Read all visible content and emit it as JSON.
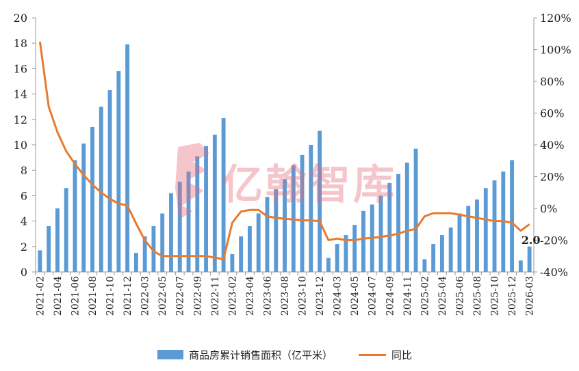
{
  "chart_data": {
    "type": "bar",
    "categories": [
      "2021-02",
      "2021-03",
      "2021-04",
      "2021-05",
      "2021-06",
      "2021-07",
      "2021-08",
      "2021-09",
      "2021-10",
      "2021-11",
      "2021-12",
      "2022-02",
      "2022-03",
      "2022-04",
      "2022-05",
      "2022-06",
      "2022-07",
      "2022-08",
      "2022-09",
      "2022-10",
      "2022-11",
      "2022-12",
      "2023-02",
      "2023-03",
      "2023-04",
      "2023-05",
      "2023-06",
      "2023-07",
      "2023-08",
      "2023-09",
      "2023-10",
      "2023-11",
      "2023-12",
      "2024-02",
      "2024-03",
      "2024-04",
      "2024-05",
      "2024-06",
      "2024-07",
      "2024-08",
      "2024-09",
      "2024-10",
      "2024-11",
      "2024-12",
      "2025-02",
      "2025-03",
      "2025-04",
      "2025-05",
      "2025-06",
      "2025-07",
      "2025-08",
      "2025-09",
      "2025-10",
      "2025-11",
      "2025-12",
      "2026-02",
      "2026-03"
    ],
    "tick_labels": [
      "2021-02",
      "2021-04",
      "2021-06",
      "2021-08",
      "2021-10",
      "2021-12",
      "2022-03",
      "2022-05",
      "2022-07",
      "2022-09",
      "2022-11",
      "2023-02",
      "2023-04",
      "2023-06",
      "2023-08",
      "2023-10",
      "2023-12",
      "2024-03",
      "2024-05",
      "2024-07",
      "2024-09",
      "2024-11",
      "2025-02",
      "2025-04",
      "2025-06",
      "2025-08",
      "2025-10",
      "2025-12",
      "2026-03"
    ],
    "series": [
      {
        "name": "商品房累计销售面积（亿平米）",
        "type": "bar",
        "axis": "left",
        "color": "#5b9bd5",
        "values": [
          1.7,
          3.6,
          5.0,
          6.6,
          8.8,
          10.1,
          11.4,
          13.0,
          14.3,
          15.8,
          17.9,
          1.5,
          2.8,
          3.6,
          4.6,
          6.2,
          7.1,
          7.9,
          9.1,
          9.9,
          10.8,
          12.1,
          1.4,
          2.8,
          3.6,
          4.6,
          5.9,
          6.5,
          7.3,
          8.4,
          9.2,
          10.0,
          11.1,
          1.1,
          2.2,
          2.9,
          3.7,
          4.8,
          5.3,
          6.0,
          7.0,
          7.7,
          8.6,
          9.7,
          1.0,
          2.2,
          2.9,
          3.5,
          4.6,
          5.2,
          5.7,
          6.6,
          7.2,
          7.9,
          8.8,
          0.9,
          2.0
        ]
      },
      {
        "name": "同比",
        "type": "line",
        "axis": "right",
        "color": "#e87a2f",
        "values": [
          105,
          64,
          48,
          36,
          28,
          21,
          15,
          10,
          6,
          3,
          1.9,
          -9.6,
          -20,
          -27,
          -30,
          -30,
          -30,
          -30,
          -30,
          -30,
          -31,
          -32,
          -9,
          -2,
          -1,
          -1,
          -5,
          -6,
          -6.5,
          -7,
          -7.5,
          -7.6,
          -8,
          -20,
          -19,
          -20,
          -20,
          -19,
          -18.5,
          -18,
          -17,
          -16,
          -14,
          -13,
          -5,
          -3,
          -3,
          -3,
          -4,
          -5,
          -6,
          -7,
          -8,
          -8,
          -9,
          -14,
          -10
        ]
      }
    ],
    "yaxis_left": {
      "min": 0,
      "max": 20,
      "step": 2,
      "ticks": [
        "0",
        "2",
        "4",
        "6",
        "8",
        "10",
        "12",
        "14",
        "16",
        "18",
        "20"
      ]
    },
    "yaxis_right": {
      "min": -40,
      "max": 120,
      "step": 20,
      "ticks": [
        "-40%",
        "-20%",
        "0%",
        "20%",
        "40%",
        "60%",
        "80%",
        "100%",
        "120%"
      ]
    },
    "data_label": {
      "text": "2.0",
      "series_index": 0,
      "point_index": 56
    },
    "grid": false,
    "legend_position": "bottom"
  },
  "legend": {
    "bar_label": "商品房累计销售面积（亿平米）",
    "line_label": "同比"
  },
  "watermark": {
    "text": "亿翰智库"
  }
}
